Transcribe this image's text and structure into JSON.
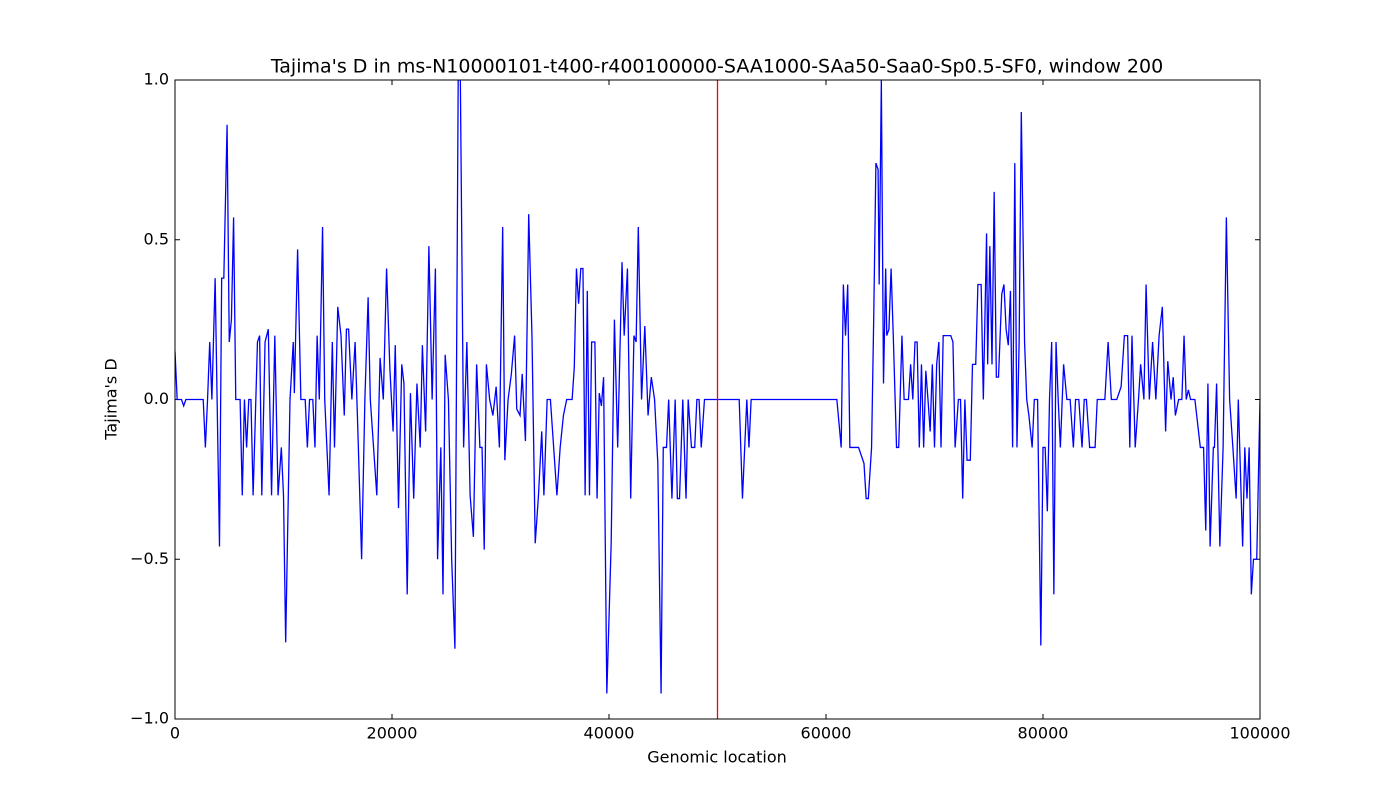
{
  "chart_data": {
    "type": "line",
    "title": "Tajima's D in ms-N10000101-t400-r400100000-SAA1000-SAa50-Saa0-Sp0.5-SF0, window 200",
    "xlabel": "Genomic location",
    "ylabel": "Tajima's D",
    "xlim": [
      0,
      100000
    ],
    "ylim": [
      -1,
      1
    ],
    "xticks": [
      0,
      20000,
      40000,
      60000,
      80000,
      100000
    ],
    "yticks": [
      {
        "value": -1,
        "label": "−1.0"
      },
      {
        "value": -0.5,
        "label": "−0.5"
      },
      {
        "value": 0,
        "label": "0.0"
      },
      {
        "value": 0.5,
        "label": "0.5"
      },
      {
        "value": 1,
        "label": "1.0"
      }
    ],
    "vline": {
      "x": 50000,
      "color": "#ff0000"
    },
    "x": [
      0,
      200,
      600,
      800,
      1000,
      2600,
      2800,
      3000,
      3200,
      3400,
      3700,
      4100,
      4300,
      4500,
      4800,
      5000,
      5200,
      5400,
      5600,
      6000,
      6200,
      6400,
      6600,
      6800,
      7000,
      7200,
      7600,
      7800,
      8000,
      8300,
      8600,
      8900,
      9200,
      9500,
      9800,
      10000,
      10200,
      10600,
      10900,
      11000,
      11300,
      11600,
      12000,
      12200,
      12400,
      12700,
      12900,
      13100,
      13300,
      13600,
      13800,
      14000,
      14200,
      14500,
      14700,
      15000,
      15300,
      15600,
      15800,
      16000,
      16300,
      16600,
      16900,
      17200,
      17500,
      17800,
      18000,
      18300,
      18600,
      18900,
      19200,
      19500,
      19800,
      20100,
      20300,
      20600,
      20900,
      21100,
      21400,
      21700,
      22000,
      22300,
      22600,
      22800,
      23100,
      23400,
      23700,
      24000,
      24200,
      24500,
      24700,
      24900,
      25200,
      25500,
      25800,
      26100,
      26300,
      26600,
      26900,
      27200,
      27500,
      27800,
      28100,
      28300,
      28500,
      28700,
      29000,
      29300,
      29600,
      29900,
      30200,
      30400,
      30700,
      31000,
      31300,
      31500,
      31800,
      32000,
      32300,
      32600,
      32900,
      33200,
      33500,
      33800,
      34000,
      34300,
      34600,
      34900,
      35200,
      35500,
      35800,
      36100,
      36600,
      36800,
      37000,
      37200,
      37400,
      37600,
      37800,
      38000,
      38200,
      38400,
      38700,
      38900,
      39100,
      39300,
      39500,
      39800,
      40200,
      40500,
      40800,
      41200,
      41400,
      41700,
      42000,
      42300,
      42500,
      42700,
      43000,
      43300,
      43600,
      43900,
      44200,
      44500,
      44800,
      45000,
      45300,
      45500,
      45800,
      46100,
      46300,
      46500,
      46800,
      47100,
      47300,
      47600,
      47900,
      48100,
      48300,
      48500,
      48800,
      49000,
      52000,
      52300,
      52700,
      52900,
      53100,
      60000,
      61000,
      61400,
      61600,
      61800,
      62000,
      62200,
      63000,
      63500,
      63700,
      63900,
      64200,
      64400,
      64600,
      64800,
      64900,
      65100,
      65300,
      65500,
      65600,
      65800,
      66000,
      66200,
      66500,
      66700,
      67000,
      67200,
      67600,
      67800,
      68000,
      68200,
      68400,
      68600,
      68800,
      69000,
      69200,
      69400,
      69600,
      69800,
      70000,
      70200,
      70400,
      70600,
      70800,
      71500,
      71700,
      71900,
      72200,
      72400,
      72600,
      72800,
      73000,
      73300,
      73500,
      73800,
      74000,
      74300,
      74500,
      74800,
      74900,
      75100,
      75300,
      75500,
      75700,
      75900,
      76200,
      76400,
      76600,
      76800,
      77000,
      77200,
      77400,
      77600,
      77800,
      78000,
      78300,
      78500,
      78700,
      79000,
      79200,
      79500,
      79800,
      80000,
      80200,
      80400,
      80600,
      80800,
      81000,
      81200,
      81400,
      81600,
      81900,
      82200,
      82500,
      82800,
      83000,
      83300,
      83600,
      83800,
      84000,
      84300,
      84600,
      84800,
      85000,
      85700,
      86000,
      86300,
      86800,
      87200,
      87500,
      87800,
      88000,
      88200,
      88500,
      88800,
      89000,
      89300,
      89500,
      89800,
      90100,
      90400,
      90700,
      91000,
      91300,
      91500,
      91800,
      92000,
      92200,
      92500,
      92800,
      93000,
      93200,
      93400,
      93600,
      94000,
      94500,
      94800,
      95000,
      95200,
      95400,
      95700,
      95800,
      96000,
      96300,
      96600,
      96900,
      97200,
      97500,
      97800,
      98000,
      98400,
      98600,
      98800,
      99000,
      99200,
      99400,
      99700,
      100000
    ],
    "series": [
      {
        "name": "Tajima's D",
        "color": "#0000ff",
        "values": [
          0.15,
          0,
          0,
          -0.02,
          0,
          0,
          -0.15,
          0,
          0.18,
          0,
          0.38,
          -0.46,
          0.38,
          0.38,
          0.86,
          0.18,
          0.25,
          0.57,
          0,
          0,
          -0.3,
          0,
          -0.15,
          0,
          0,
          -0.3,
          0.18,
          0.2,
          -0.3,
          0.18,
          0.22,
          -0.3,
          0.2,
          -0.3,
          -0.15,
          -0.3,
          -0.76,
          0,
          0.18,
          0.02,
          0.47,
          0,
          0,
          -0.15,
          0,
          0,
          -0.15,
          0.2,
          0,
          0.54,
          0,
          -0.15,
          -0.3,
          0.18,
          -0.15,
          0.29,
          0.2,
          -0.05,
          0.22,
          0.22,
          0,
          0.18,
          -0.15,
          -0.5,
          0,
          0.32,
          0,
          -0.15,
          -0.3,
          0.13,
          0,
          0.41,
          0.1,
          -0.1,
          0.17,
          -0.34,
          0.11,
          0.05,
          -0.61,
          0.02,
          -0.31,
          0.05,
          -0.15,
          0.17,
          -0.1,
          0.48,
          0,
          0.41,
          -0.5,
          -0.15,
          -0.61,
          0.14,
          0,
          -0.5,
          -0.78,
          1,
          1,
          -0.15,
          0.18,
          -0.3,
          -0.43,
          0.11,
          -0.15,
          -0.15,
          -0.47,
          0.11,
          0,
          -0.05,
          0.04,
          -0.15,
          0.54,
          -0.19,
          0,
          0.08,
          0.2,
          -0.03,
          -0.05,
          0.08,
          -0.13,
          0.58,
          0.2,
          -0.45,
          -0.3,
          -0.1,
          -0.3,
          0,
          0,
          -0.15,
          -0.3,
          -0.15,
          -0.05,
          0,
          0,
          0.1,
          0.41,
          0.3,
          0.41,
          0.41,
          -0.3,
          0.34,
          -0.3,
          0.18,
          0.18,
          -0.31,
          0.02,
          -0.02,
          0.07,
          -0.92,
          -0.45,
          0.25,
          -0.15,
          0.43,
          0.2,
          0.41,
          -0.31,
          0.2,
          0.18,
          0.54,
          0,
          0.23,
          -0.05,
          0.07,
          0,
          -0.2,
          -0.92,
          -0.15,
          -0.15,
          0,
          -0.31,
          0,
          -0.31,
          -0.31,
          0,
          -0.31,
          0,
          -0.15,
          -0.15,
          0,
          0,
          -0.15,
          0,
          0,
          0,
          -0.31,
          0,
          -0.15,
          0,
          0,
          0,
          -0.15,
          0.36,
          0.2,
          0.36,
          -0.15,
          -0.15,
          -0.2,
          -0.31,
          -0.31,
          -0.15,
          0.26,
          0.74,
          0.72,
          0.36,
          1,
          0.05,
          0.41,
          0.2,
          0.22,
          0.41,
          0.2,
          -0.15,
          -0.15,
          0.2,
          0,
          0,
          0.11,
          0,
          0.18,
          0.18,
          -0.15,
          0.11,
          -0.15,
          0.09,
          0,
          -0.1,
          0.11,
          -0.15,
          0.11,
          0.18,
          -0.15,
          0.2,
          0.2,
          0.18,
          -0.15,
          0,
          0,
          -0.31,
          0,
          -0.19,
          -0.19,
          0.11,
          0.11,
          0.36,
          0.36,
          0,
          0.52,
          0.11,
          0.48,
          0.11,
          0.65,
          0.07,
          0.07,
          0.33,
          0.36,
          0.22,
          0.17,
          0.34,
          -0.15,
          0.74,
          -0.15,
          0.18,
          0.9,
          0.18,
          0,
          -0.05,
          -0.15,
          0,
          0,
          -0.77,
          -0.15,
          -0.15,
          -0.35,
          0,
          0.18,
          -0.61,
          0.18,
          0,
          -0.15,
          0.11,
          0,
          0,
          -0.15,
          0,
          0,
          -0.15,
          0,
          0,
          -0.15,
          -0.15,
          -0.15,
          0,
          0,
          0.18,
          0,
          0,
          0.04,
          0.2,
          0.2,
          -0.15,
          0.2,
          -0.15,
          0,
          0.11,
          0,
          0.36,
          0,
          0.18,
          0,
          0.2,
          0.29,
          -0.1,
          0.12,
          0,
          0.07,
          -0.05,
          0,
          0,
          0.2,
          0,
          0.03,
          0,
          0,
          -0.15,
          -0.15,
          -0.41,
          0.05,
          -0.46,
          -0.15,
          -0.15,
          0.05,
          -0.46,
          -0.15,
          0.57,
          0,
          -0.15,
          -0.31,
          0,
          -0.46,
          -0.15,
          -0.31,
          -0.15,
          -0.61,
          -0.5,
          -0.5,
          0
        ]
      }
    ]
  }
}
